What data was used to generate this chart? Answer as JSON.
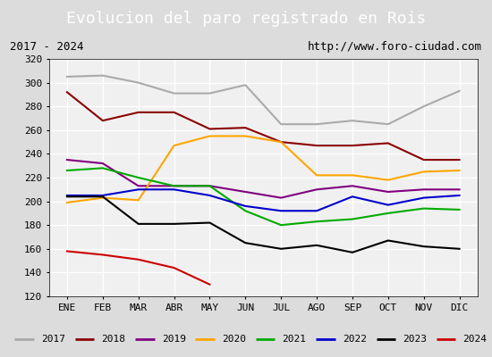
{
  "title": "Evolucion del paro registrado en Rois",
  "subtitle_left": "2017 - 2024",
  "subtitle_right": "http://www.foro-ciudad.com",
  "xlabel_months": [
    "ENE",
    "FEB",
    "MAR",
    "ABR",
    "MAY",
    "JUN",
    "JUL",
    "AGO",
    "SEP",
    "OCT",
    "NOV",
    "DIC"
  ],
  "ylim": [
    120,
    320
  ],
  "yticks": [
    120,
    140,
    160,
    180,
    200,
    220,
    240,
    260,
    280,
    300,
    320
  ],
  "series": {
    "2017": {
      "color": "#aaaaaa",
      "values": [
        305,
        306,
        300,
        291,
        291,
        298,
        265,
        265,
        268,
        265,
        280,
        293
      ]
    },
    "2018": {
      "color": "#8b0000",
      "values": [
        292,
        268,
        275,
        275,
        261,
        262,
        250,
        247,
        247,
        249,
        235,
        235
      ]
    },
    "2019": {
      "color": "#800080",
      "values": [
        235,
        232,
        213,
        213,
        213,
        208,
        203,
        210,
        213,
        208,
        210,
        210
      ]
    },
    "2020": {
      "color": "#ffa500",
      "values": [
        199,
        203,
        201,
        247,
        255,
        255,
        250,
        222,
        222,
        218,
        225,
        226
      ]
    },
    "2021": {
      "color": "#00aa00",
      "values": [
        226,
        228,
        220,
        213,
        213,
        192,
        180,
        183,
        185,
        190,
        194,
        193
      ]
    },
    "2022": {
      "color": "#0000cc",
      "values": [
        205,
        205,
        210,
        210,
        205,
        196,
        192,
        192,
        204,
        197,
        203,
        205
      ]
    },
    "2023": {
      "color": "#000000",
      "values": [
        204,
        204,
        181,
        181,
        182,
        165,
        160,
        163,
        157,
        167,
        162,
        160
      ]
    },
    "2024": {
      "color": "#cc0000",
      "values": [
        158,
        155,
        151,
        144,
        130,
        null,
        null,
        null,
        null,
        null,
        null,
        null
      ]
    }
  },
  "title_bg_color": "#4a90d9",
  "title_text_color": "white",
  "subtitle_bg_color": "#e8e8e8",
  "plot_bg_color": "#f0f0f0",
  "grid_color": "white",
  "outer_bg_color": "#dcdcdc"
}
